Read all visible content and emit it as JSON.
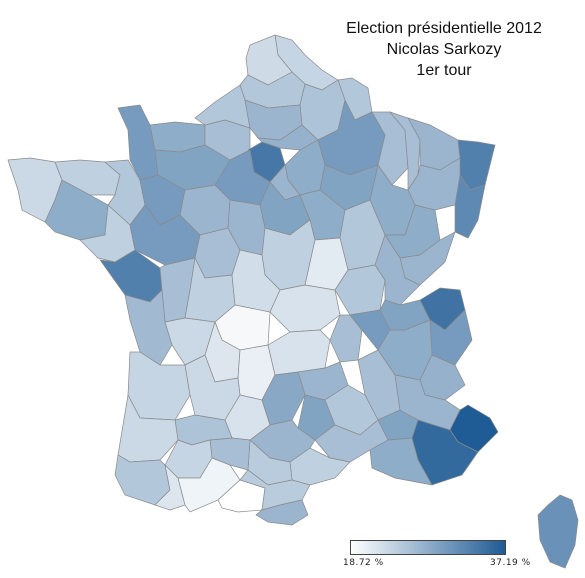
{
  "title": {
    "line1": "Election présidentielle 2012",
    "line2": "Nicolas Sarkozy",
    "line3": "1er tour"
  },
  "legend": {
    "min_label": "18.72 %",
    "max_label": "37.19 %",
    "min_value": 18.72,
    "max_value": 37.19,
    "color_low": "#ffffff",
    "color_high": "#1f5b94"
  },
  "regions": [
    {
      "name": "nord",
      "value": 23.5
    },
    {
      "name": "pas-de-calais",
      "value": 22.8
    },
    {
      "name": "somme",
      "value": 25.0
    },
    {
      "name": "aisne",
      "value": 25.5
    },
    {
      "name": "ardennes",
      "value": 25.0
    },
    {
      "name": "marne",
      "value": 30.0
    },
    {
      "name": "meuse",
      "value": 26.0
    },
    {
      "name": "meurthe-et-moselle",
      "value": 26.0
    },
    {
      "name": "moselle",
      "value": 27.0
    },
    {
      "name": "bas-rhin",
      "value": 33.0
    },
    {
      "name": "haut-rhin",
      "value": 32.0
    },
    {
      "name": "vosges",
      "value": 27.0
    },
    {
      "name": "manche",
      "value": 30.0
    },
    {
      "name": "calvados",
      "value": 28.0
    },
    {
      "name": "eure",
      "value": 26.0
    },
    {
      "name": "seine-maritime",
      "value": 25.0
    },
    {
      "name": "oise",
      "value": 27.0
    },
    {
      "name": "paris-yvelines",
      "value": 34.0
    },
    {
      "name": "val-d-oise",
      "value": 27.5
    },
    {
      "name": "seine-et-marne",
      "value": 28.0
    },
    {
      "name": "essonne",
      "value": 27.0
    },
    {
      "name": "aube",
      "value": 29.0
    },
    {
      "name": "haute-marne",
      "value": 28.0
    },
    {
      "name": "finistere",
      "value": 23.0
    },
    {
      "name": "cotes-d-armor",
      "value": 24.0
    },
    {
      "name": "morbihan",
      "value": 28.0
    },
    {
      "name": "ille-et-vilaine",
      "value": 25.0
    },
    {
      "name": "orne",
      "value": 29.0
    },
    {
      "name": "mayenne",
      "value": 30.0
    },
    {
      "name": "sarthe",
      "value": 27.0
    },
    {
      "name": "eure-et-loir",
      "value": 30.0
    },
    {
      "name": "loiret",
      "value": 29.0
    },
    {
      "name": "yonne",
      "value": 28.0
    },
    {
      "name": "cote-d-or",
      "value": 25.0
    },
    {
      "name": "haute-saone",
      "value": 28.0
    },
    {
      "name": "doubs",
      "value": 27.0
    },
    {
      "name": "loire-atlantique",
      "value": 24.0
    },
    {
      "name": "maine-et-loire",
      "value": 30.0
    },
    {
      "name": "indre-et-loire",
      "value": 26.0
    },
    {
      "name": "loir-et-cher",
      "value": 27.0
    },
    {
      "name": "cher",
      "value": 24.0
    },
    {
      "name": "nievre",
      "value": 21.0
    },
    {
      "name": "saone-et-loire",
      "value": 25.0
    },
    {
      "name": "jura",
      "value": 27.0
    },
    {
      "name": "vendee",
      "value": 33.0
    },
    {
      "name": "deux-sevres",
      "value": 26.0
    },
    {
      "name": "vienne",
      "value": 24.0
    },
    {
      "name": "indre",
      "value": 22.5
    },
    {
      "name": "creuse",
      "value": 19.5
    },
    {
      "name": "allier",
      "value": 22.0
    },
    {
      "name": "loire",
      "value": 26.0
    },
    {
      "name": "rhone",
      "value": 30.0
    },
    {
      "name": "ain",
      "value": 29.0
    },
    {
      "name": "haute-savoie",
      "value": 34.5
    },
    {
      "name": "savoie",
      "value": 30.0
    },
    {
      "name": "charente-maritime",
      "value": 26.5
    },
    {
      "name": "charente",
      "value": 23.0
    },
    {
      "name": "haute-vienne",
      "value": 21.5
    },
    {
      "name": "correze",
      "value": 20.5
    },
    {
      "name": "puy-de-dome",
      "value": 22.0
    },
    {
      "name": "haute-loire",
      "value": 27.0
    },
    {
      "name": "isere",
      "value": 28.0
    },
    {
      "name": "drome",
      "value": 26.0
    },
    {
      "name": "hautes-alpes",
      "value": 27.5
    },
    {
      "name": "gironde",
      "value": 23.5
    },
    {
      "name": "dordogne",
      "value": 23.0
    },
    {
      "name": "lot",
      "value": 22.0
    },
    {
      "name": "cantal",
      "value": 28.5
    },
    {
      "name": "lozere",
      "value": 29.0
    },
    {
      "name": "ardeche",
      "value": 25.0
    },
    {
      "name": "vaucluse",
      "value": 29.0
    },
    {
      "name": "alpes-de-haute-provence",
      "value": 27.0
    },
    {
      "name": "alpes-maritimes",
      "value": 37.19
    },
    {
      "name": "var",
      "value": 35.5
    },
    {
      "name": "bouches-du-rhone",
      "value": 28.0
    },
    {
      "name": "gard",
      "value": 26.0
    },
    {
      "name": "herault",
      "value": 24.0
    },
    {
      "name": "aveyron",
      "value": 27.0
    },
    {
      "name": "tarn",
      "value": 24.5
    },
    {
      "name": "tarn-et-garonne",
      "value": 26.0
    },
    {
      "name": "lot-et-garonne",
      "value": 25.5
    },
    {
      "name": "landes",
      "value": 23.0
    },
    {
      "name": "gers",
      "value": 23.5
    },
    {
      "name": "pyrenees-atlantiques",
      "value": 25.0
    },
    {
      "name": "hautes-pyrenees",
      "value": 21.5
    },
    {
      "name": "haute-garonne",
      "value": 20.0
    },
    {
      "name": "ariege",
      "value": 18.72
    },
    {
      "name": "aude",
      "value": 24.5
    },
    {
      "name": "pyrenees-orientales",
      "value": 27.0
    },
    {
      "name": "corse",
      "value": 31.0
    }
  ]
}
